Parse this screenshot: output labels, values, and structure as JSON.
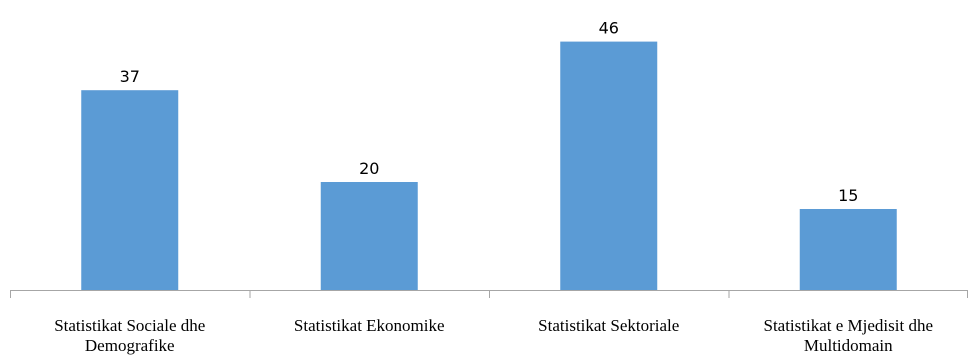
{
  "chart_data": {
    "type": "bar",
    "categories": [
      [
        "Statistikat Sociale dhe",
        "Demografike"
      ],
      [
        "Statistikat Ekonomike"
      ],
      [
        "Statistikat Sektoriale"
      ],
      [
        "Statistikat e Mjedisit dhe",
        "Multidomain"
      ]
    ],
    "values": [
      37,
      20,
      46,
      15
    ],
    "value_labels": [
      "37",
      "20",
      "46",
      "15"
    ],
    "title": "",
    "xlabel": "",
    "ylabel": "",
    "ylim": [
      0,
      50
    ],
    "grid": false,
    "legend": "none",
    "bar_color": "#5b9bd5"
  }
}
